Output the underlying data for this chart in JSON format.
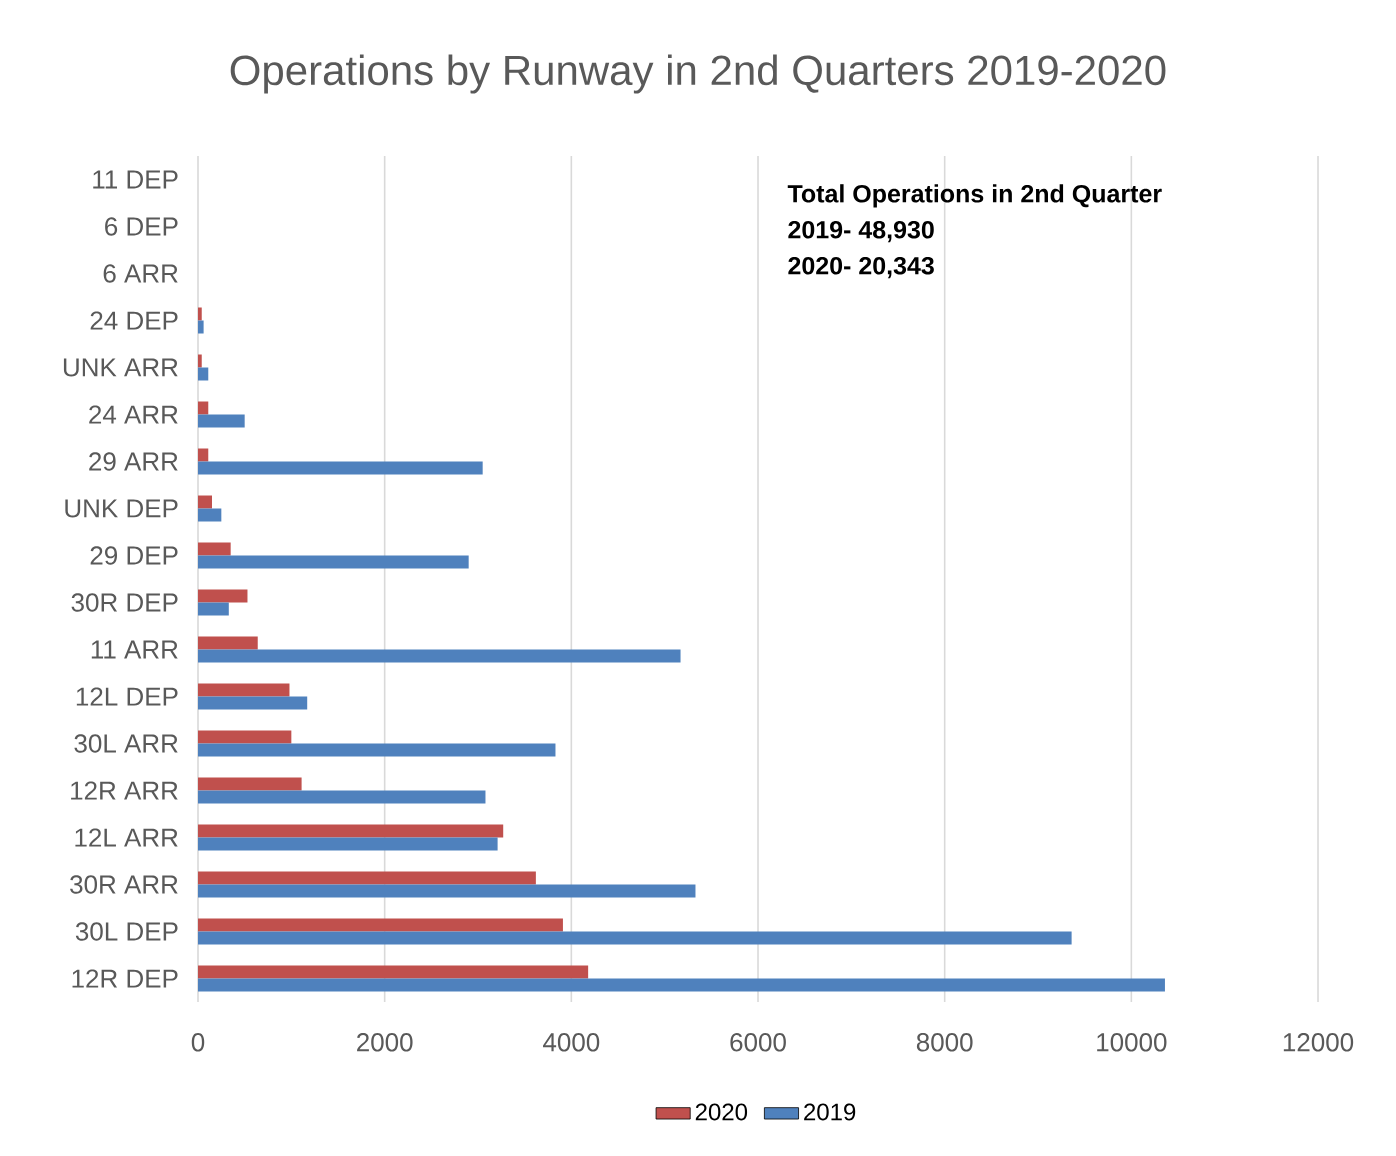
{
  "chart_data": {
    "type": "bar",
    "orientation": "horizontal",
    "title": "Operations by Runway in 2nd Quarters 2019-2020",
    "categories": [
      "11 DEP",
      "6 DEP",
      "6 ARR",
      "24 DEP",
      "UNK ARR",
      "24 ARR",
      "29 ARR",
      "UNK DEP",
      "29 DEP",
      "30R DEP",
      "11 ARR",
      "12L DEP",
      "30L ARR",
      "12R ARR",
      "12L ARR",
      "30R ARR",
      "30L DEP",
      "12R DEP"
    ],
    "series": [
      {
        "name": "2020",
        "color": "#c0504d",
        "values": [
          0,
          0,
          0,
          40,
          40,
          110,
          110,
          150,
          350,
          530,
          640,
          980,
          1000,
          1110,
          3270,
          3620,
          3910,
          4180
        ]
      },
      {
        "name": "2019",
        "color": "#4f81bd",
        "values": [
          0,
          0,
          0,
          60,
          110,
          500,
          3050,
          250,
          2900,
          330,
          5170,
          1170,
          3830,
          3080,
          3210,
          5330,
          9360,
          10360
        ]
      }
    ],
    "xlim": [
      0,
      12000
    ],
    "xticks": [
      0,
      2000,
      4000,
      6000,
      8000,
      10000,
      12000
    ],
    "grid": "x",
    "legend": "bottom",
    "annotations": [
      "Total Operations in 2nd Quarter",
      "2019- 48,930",
      "2020- 20,343"
    ]
  }
}
